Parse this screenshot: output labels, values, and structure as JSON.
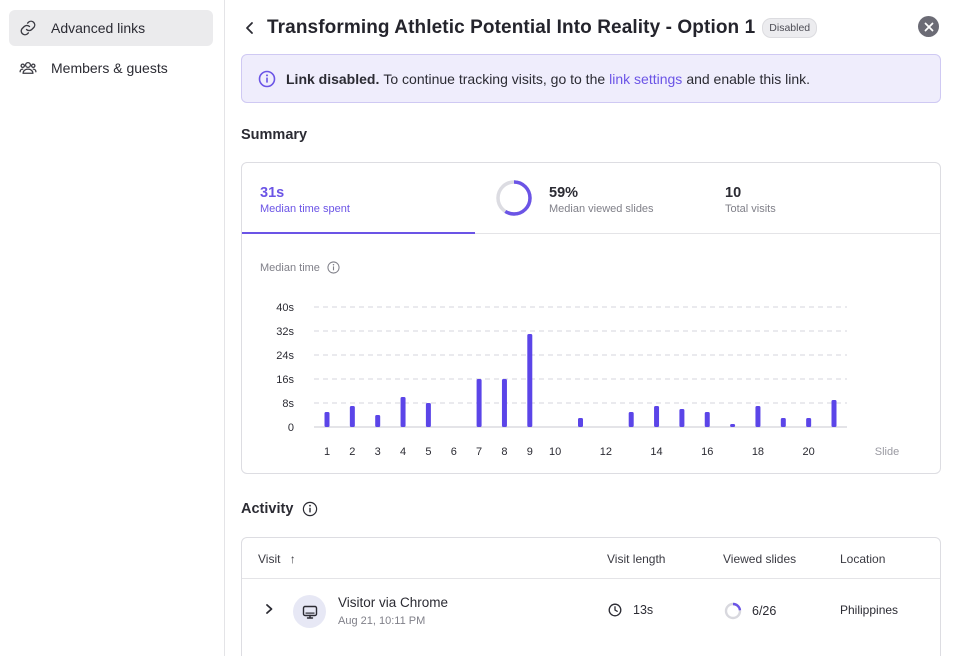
{
  "sidebar": {
    "items": [
      {
        "label": "Advanced links",
        "icon": "link-icon"
      },
      {
        "label": "Members & guests",
        "icon": "users-icon"
      }
    ]
  },
  "header": {
    "title": "Transforming Athletic Potential Into Reality - Option 1",
    "badge": "Disabled"
  },
  "alert": {
    "bold": "Link disabled.",
    "text_before": "To continue tracking visits, go to the",
    "link": "link settings",
    "text_after": "and enable this link."
  },
  "summary": {
    "title": "Summary",
    "stats": [
      {
        "value": "31s",
        "label": "Median time spent"
      },
      {
        "value": "59%",
        "label": "Median viewed slides",
        "ring_fraction": 0.59
      },
      {
        "value": "10",
        "label": "Total visits"
      }
    ]
  },
  "chart_data": {
    "type": "bar",
    "title": "Median time",
    "xlabel": "Slide",
    "ylabel": "Median time",
    "ylim": [
      0,
      40
    ],
    "yticks": [
      "0",
      "8s",
      "16s",
      "24s",
      "32s",
      "40s"
    ],
    "ytick_values": [
      0,
      8,
      16,
      24,
      32,
      40
    ],
    "categories": [
      1,
      2,
      3,
      4,
      5,
      6,
      7,
      8,
      9,
      10,
      11,
      12,
      13,
      14,
      15,
      16,
      17,
      18,
      19,
      20,
      21
    ],
    "xtick_labels": [
      "1",
      "2",
      "3",
      "4",
      "5",
      "6",
      "7",
      "8",
      "9",
      "10",
      "",
      "12",
      "",
      "14",
      "",
      "16",
      "",
      "18",
      "",
      "20",
      ""
    ],
    "values": [
      5,
      7,
      4,
      10,
      8,
      0,
      16,
      16,
      31,
      0,
      3,
      0,
      5,
      7,
      6,
      5,
      1,
      7,
      3,
      3,
      9
    ],
    "bar_color": "#5b45e8",
    "grid": true
  },
  "activity": {
    "title": "Activity",
    "columns": [
      "Visit",
      "Visit length",
      "Viewed slides",
      "Location"
    ],
    "sort_arrow": "↑",
    "rows": [
      {
        "visitor": "Visitor via Chrome",
        "date": "Aug 21, 10:11 PM",
        "length": "13s",
        "viewed": "6/26",
        "viewed_fraction": 0.23,
        "location": "Philippines"
      }
    ]
  },
  "colors": {
    "accent": "#6b54e6",
    "bar": "#5b45e8"
  }
}
